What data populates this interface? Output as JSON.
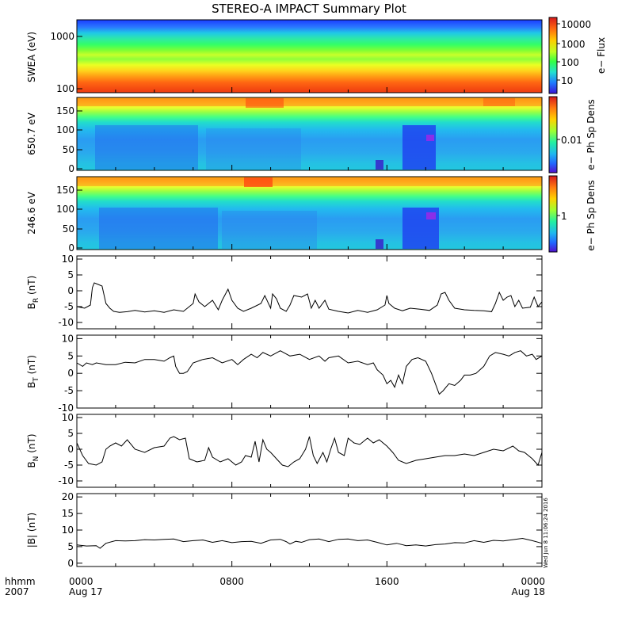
{
  "chart_data": {
    "title": "STEREO-A IMPACT Summary Plot",
    "type": "multi-panel",
    "time_axis": {
      "label_top": "hhmm",
      "label_bottom": "2007",
      "ticks": [
        {
          "t": 0,
          "top": "0000",
          "bottom": "Aug 17"
        },
        {
          "t": 8,
          "top": "0800",
          "bottom": ""
        },
        {
          "t": 16,
          "top": "1600",
          "bottom": ""
        },
        {
          "t": 24,
          "top": "0000",
          "bottom": "Aug 18"
        }
      ],
      "range_hours": [
        0,
        24
      ]
    },
    "timestamp": "Wed Jun  8 11:06:24 2016",
    "spectrograms": [
      {
        "ylabel": "SWEA (eV)",
        "yscale": "log",
        "ylim": [
          90,
          2000
        ],
        "yticks": [
          "1000",
          "100"
        ],
        "ytick_values": [
          1000,
          100
        ],
        "colorbar_label": "e− Flux",
        "colorbar_ticks": [
          "10000",
          "1000",
          "100",
          "10"
        ],
        "colorbar_fraction": [
          0.06,
          0.32,
          0.58,
          0.84
        ]
      },
      {
        "ylabel": "650.7 eV",
        "yscale": "linear",
        "ylim": [
          -5,
          180
        ],
        "yticks": [
          "150",
          "100",
          "50",
          "0"
        ],
        "ytick_values": [
          150,
          100,
          50,
          0
        ],
        "colorbar_label": "e− Ph Sp Dens",
        "colorbar_ticks": [
          "0.01"
        ],
        "colorbar_fraction": [
          0.55
        ]
      },
      {
        "ylabel": "246.6 eV",
        "yscale": "linear",
        "ylim": [
          -5,
          180
        ],
        "yticks": [
          "150",
          "100",
          "50",
          "0"
        ],
        "ytick_values": [
          150,
          100,
          50,
          0
        ],
        "colorbar_label": "e− Ph Sp Dens",
        "colorbar_ticks": [
          "1"
        ],
        "colorbar_fraction": [
          0.52
        ]
      }
    ],
    "line_panels": [
      {
        "ylabel": "B",
        "ysub": "R",
        "yunit": "(nT)",
        "ylim": [
          -12,
          11
        ],
        "yticks": [
          "10",
          "5",
          "0",
          "-5",
          "-10"
        ],
        "ytick_values": [
          10,
          5,
          0,
          -5,
          -10
        ],
        "series": [
          [
            0,
            -5
          ],
          [
            0.4,
            -5.5
          ],
          [
            0.7,
            -4.5
          ],
          [
            0.8,
            1
          ],
          [
            0.9,
            2.5
          ],
          [
            1.1,
            2
          ],
          [
            1.3,
            1.5
          ],
          [
            1.5,
            -4
          ],
          [
            1.7,
            -5.5
          ],
          [
            1.9,
            -6.5
          ],
          [
            2.2,
            -6.8
          ],
          [
            2.6,
            -6.6
          ],
          [
            3,
            -6.2
          ],
          [
            3.5,
            -6.7
          ],
          [
            4,
            -6.3
          ],
          [
            4.5,
            -6.8
          ],
          [
            5,
            -6
          ],
          [
            5.5,
            -6.5
          ],
          [
            6,
            -4
          ],
          [
            6.1,
            -1
          ],
          [
            6.3,
            -3.5
          ],
          [
            6.6,
            -5
          ],
          [
            7,
            -3
          ],
          [
            7.3,
            -6
          ],
          [
            7.5,
            -3
          ],
          [
            7.8,
            0.5
          ],
          [
            8,
            -3
          ],
          [
            8.3,
            -5.5
          ],
          [
            8.6,
            -6.5
          ],
          [
            9,
            -5.5
          ],
          [
            9.5,
            -4
          ],
          [
            9.7,
            -1.5
          ],
          [
            10,
            -5.5
          ],
          [
            10.1,
            -1
          ],
          [
            10.3,
            -2.5
          ],
          [
            10.5,
            -5.5
          ],
          [
            10.8,
            -6.5
          ],
          [
            11,
            -4.5
          ],
          [
            11.2,
            -1.5
          ],
          [
            11.6,
            -2
          ],
          [
            11.9,
            -1
          ],
          [
            12.1,
            -5.5
          ],
          [
            12.3,
            -3
          ],
          [
            12.5,
            -5.5
          ],
          [
            12.8,
            -3
          ],
          [
            13,
            -5.8
          ],
          [
            13.5,
            -6.5
          ],
          [
            14,
            -7
          ],
          [
            14.5,
            -6.2
          ],
          [
            15,
            -6.8
          ],
          [
            15.5,
            -6
          ],
          [
            15.9,
            -4.5
          ],
          [
            16,
            -1.5
          ],
          [
            16.1,
            -4
          ],
          [
            16.4,
            -5.5
          ],
          [
            16.8,
            -6.3
          ],
          [
            17.2,
            -5.5
          ],
          [
            17.7,
            -5.8
          ],
          [
            18.2,
            -6.2
          ],
          [
            18.6,
            -4.5
          ],
          [
            18.8,
            -1
          ],
          [
            19,
            -0.5
          ],
          [
            19.2,
            -3
          ],
          [
            19.5,
            -5.5
          ],
          [
            20,
            -6
          ],
          [
            20.5,
            -6.2
          ],
          [
            21,
            -6.3
          ],
          [
            21.4,
            -6.6
          ],
          [
            21.6,
            -4
          ],
          [
            21.8,
            -0.5
          ],
          [
            22,
            -3
          ],
          [
            22.2,
            -2
          ],
          [
            22.4,
            -1.5
          ],
          [
            22.6,
            -5
          ],
          [
            22.8,
            -3
          ],
          [
            23,
            -5.5
          ],
          [
            23.4,
            -5.2
          ],
          [
            23.6,
            -2
          ],
          [
            23.8,
            -5
          ],
          [
            24,
            -3.5
          ]
        ]
      },
      {
        "ylabel": "B",
        "ysub": "T",
        "yunit": "(nT)",
        "ylim": [
          -10,
          11
        ],
        "yticks": [
          "10",
          "5",
          "0",
          "-5",
          "-10"
        ],
        "ytick_values": [
          10,
          5,
          0,
          -5,
          -10
        ],
        "series": [
          [
            0,
            3
          ],
          [
            0.3,
            2
          ],
          [
            0.5,
            3
          ],
          [
            0.8,
            2.5
          ],
          [
            1,
            3
          ],
          [
            1.5,
            2.5
          ],
          [
            2,
            2.5
          ],
          [
            2.5,
            3.2
          ],
          [
            3,
            3
          ],
          [
            3.5,
            4
          ],
          [
            4,
            4
          ],
          [
            4.5,
            3.5
          ],
          [
            4.8,
            4.5
          ],
          [
            5,
            5
          ],
          [
            5.1,
            2
          ],
          [
            5.3,
            0
          ],
          [
            5.5,
            0
          ],
          [
            5.7,
            0.5
          ],
          [
            6,
            3
          ],
          [
            6.5,
            4
          ],
          [
            7,
            4.5
          ],
          [
            7.5,
            3
          ],
          [
            8,
            4
          ],
          [
            8.3,
            2.5
          ],
          [
            8.6,
            4
          ],
          [
            9,
            5.5
          ],
          [
            9.3,
            4.5
          ],
          [
            9.6,
            6
          ],
          [
            10,
            5
          ],
          [
            10.5,
            6.5
          ],
          [
            11,
            5
          ],
          [
            11.5,
            5.5
          ],
          [
            12,
            4
          ],
          [
            12.5,
            5
          ],
          [
            12.8,
            3.5
          ],
          [
            13,
            4.5
          ],
          [
            13.5,
            5
          ],
          [
            14,
            3
          ],
          [
            14.5,
            3.5
          ],
          [
            15,
            2.5
          ],
          [
            15.3,
            3
          ],
          [
            15.5,
            1
          ],
          [
            15.8,
            -0.5
          ],
          [
            16,
            -3
          ],
          [
            16.2,
            -2
          ],
          [
            16.4,
            -4
          ],
          [
            16.6,
            -0.5
          ],
          [
            16.8,
            -3
          ],
          [
            17,
            2
          ],
          [
            17.3,
            4
          ],
          [
            17.6,
            4.5
          ],
          [
            18,
            3.5
          ],
          [
            18.3,
            0
          ],
          [
            18.5,
            -3
          ],
          [
            18.7,
            -6
          ],
          [
            18.9,
            -5
          ],
          [
            19.2,
            -3
          ],
          [
            19.5,
            -3.5
          ],
          [
            19.8,
            -2
          ],
          [
            20,
            -0.5
          ],
          [
            20.3,
            -0.5
          ],
          [
            20.6,
            0
          ],
          [
            21,
            2
          ],
          [
            21.3,
            5
          ],
          [
            21.6,
            6
          ],
          [
            22,
            5.5
          ],
          [
            22.3,
            5
          ],
          [
            22.6,
            6
          ],
          [
            22.9,
            6.5
          ],
          [
            23.2,
            5
          ],
          [
            23.5,
            5.5
          ],
          [
            23.7,
            4
          ],
          [
            24,
            5
          ]
        ]
      },
      {
        "ylabel": "B",
        "ysub": "N",
        "yunit": "(nT)",
        "ylim": [
          -12,
          11
        ],
        "yticks": [
          "10",
          "5",
          "0",
          "-5",
          "-10"
        ],
        "ytick_values": [
          10,
          5,
          0,
          -5,
          -10
        ],
        "series": [
          [
            0,
            2
          ],
          [
            0.3,
            -2
          ],
          [
            0.6,
            -4.5
          ],
          [
            1,
            -5
          ],
          [
            1.3,
            -4
          ],
          [
            1.5,
            0
          ],
          [
            1.7,
            1
          ],
          [
            2,
            2
          ],
          [
            2.3,
            1
          ],
          [
            2.6,
            3
          ],
          [
            3,
            0
          ],
          [
            3.5,
            -1
          ],
          [
            4,
            0.5
          ],
          [
            4.5,
            1
          ],
          [
            4.8,
            3.5
          ],
          [
            5,
            4
          ],
          [
            5.3,
            3
          ],
          [
            5.6,
            3.5
          ],
          [
            5.8,
            -3
          ],
          [
            6.2,
            -4
          ],
          [
            6.6,
            -3.5
          ],
          [
            6.8,
            0.5
          ],
          [
            7,
            -2.5
          ],
          [
            7.4,
            -4
          ],
          [
            7.8,
            -3
          ],
          [
            8.2,
            -5
          ],
          [
            8.5,
            -4
          ],
          [
            8.7,
            -2
          ],
          [
            9,
            -2.5
          ],
          [
            9.2,
            2.5
          ],
          [
            9.4,
            -4
          ],
          [
            9.6,
            3
          ],
          [
            9.8,
            0
          ],
          [
            10,
            -1
          ],
          [
            10.3,
            -3
          ],
          [
            10.6,
            -5
          ],
          [
            10.9,
            -5.5
          ],
          [
            11.2,
            -4
          ],
          [
            11.5,
            -3
          ],
          [
            11.8,
            0
          ],
          [
            12,
            4
          ],
          [
            12.2,
            -2
          ],
          [
            12.4,
            -4.5
          ],
          [
            12.7,
            -1
          ],
          [
            12.9,
            -4
          ],
          [
            13.1,
            0
          ],
          [
            13.3,
            3.5
          ],
          [
            13.5,
            -1
          ],
          [
            13.8,
            -2
          ],
          [
            14,
            3.5
          ],
          [
            14.3,
            2
          ],
          [
            14.6,
            1.5
          ],
          [
            15,
            3.5
          ],
          [
            15.3,
            2
          ],
          [
            15.6,
            3
          ],
          [
            16,
            1
          ],
          [
            16.3,
            -1
          ],
          [
            16.6,
            -3.5
          ],
          [
            17,
            -4.5
          ],
          [
            17.5,
            -3.5
          ],
          [
            18,
            -3
          ],
          [
            18.5,
            -2.5
          ],
          [
            19,
            -2
          ],
          [
            19.5,
            -2
          ],
          [
            20,
            -1.5
          ],
          [
            20.5,
            -2
          ],
          [
            21,
            -1
          ],
          [
            21.5,
            0
          ],
          [
            22,
            -0.5
          ],
          [
            22.5,
            1
          ],
          [
            22.8,
            -0.5
          ],
          [
            23.1,
            -1
          ],
          [
            23.5,
            -3
          ],
          [
            23.8,
            -5
          ],
          [
            24,
            -1
          ]
        ]
      },
      {
        "ylabel": "|B|",
        "ysub": "",
        "yunit": "(nT)",
        "ylim": [
          -1,
          21
        ],
        "yticks": [
          "20",
          "15",
          "10",
          "5",
          "0"
        ],
        "ytick_values": [
          20,
          15,
          10,
          5,
          0
        ],
        "series": [
          [
            0,
            5.5
          ],
          [
            0.5,
            5.2
          ],
          [
            1,
            5.3
          ],
          [
            1.2,
            4.5
          ],
          [
            1.5,
            6
          ],
          [
            2,
            6.8
          ],
          [
            2.5,
            6.7
          ],
          [
            3,
            6.8
          ],
          [
            3.5,
            7.1
          ],
          [
            4,
            7
          ],
          [
            4.5,
            7.2
          ],
          [
            5,
            7.3
          ],
          [
            5.5,
            6.5
          ],
          [
            6,
            6.8
          ],
          [
            6.5,
            7
          ],
          [
            7,
            6.3
          ],
          [
            7.5,
            6.8
          ],
          [
            8,
            6.2
          ],
          [
            8.5,
            6.5
          ],
          [
            9,
            6.6
          ],
          [
            9.5,
            6
          ],
          [
            10,
            7
          ],
          [
            10.5,
            7.2
          ],
          [
            10.8,
            6.5
          ],
          [
            11,
            5.8
          ],
          [
            11.3,
            6.6
          ],
          [
            11.6,
            6.3
          ],
          [
            12,
            7.1
          ],
          [
            12.5,
            7.3
          ],
          [
            13,
            6.5
          ],
          [
            13.5,
            7.2
          ],
          [
            14,
            7.3
          ],
          [
            14.5,
            6.8
          ],
          [
            15,
            7
          ],
          [
            15.5,
            6.3
          ],
          [
            16,
            5.5
          ],
          [
            16.5,
            6
          ],
          [
            17,
            5.3
          ],
          [
            17.5,
            5.5
          ],
          [
            18,
            5.2
          ],
          [
            18.5,
            5.6
          ],
          [
            19,
            5.8
          ],
          [
            19.5,
            6.2
          ],
          [
            20,
            6.1
          ],
          [
            20.5,
            6.8
          ],
          [
            21,
            6.3
          ],
          [
            21.5,
            6.9
          ],
          [
            22,
            6.7
          ],
          [
            22.5,
            7.1
          ],
          [
            23,
            7.5
          ],
          [
            23.5,
            6.8
          ],
          [
            24,
            6
          ]
        ]
      }
    ]
  }
}
